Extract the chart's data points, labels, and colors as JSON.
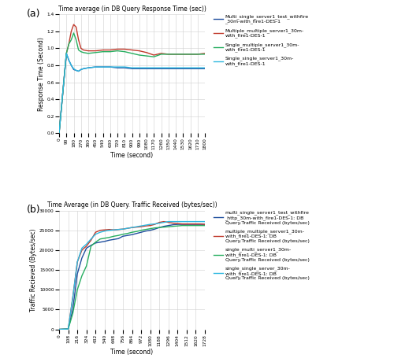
{
  "plot_a": {
    "title": "Time average (in DB Query Response Time (sec))",
    "xlabel": "Time (second)",
    "ylabel": "Response Time (Second)",
    "xlim": [
      0,
      1800
    ],
    "ylim": [
      0,
      1.4
    ],
    "xticks": [
      0,
      90,
      180,
      270,
      360,
      450,
      540,
      630,
      720,
      810,
      900,
      990,
      1080,
      1170,
      1260,
      1350,
      1440,
      1530,
      1620,
      1710,
      1800
    ],
    "yticks": [
      0,
      0.2,
      0.4,
      0.6,
      0.8,
      1.0,
      1.2,
      1.4
    ],
    "lines": [
      {
        "label": "Multi_single_server1_test_withfire\n_30m-with_fire1-DES-1",
        "color": "#1f4e9e",
        "x": [
          0,
          90,
          120,
          150,
          180,
          210,
          240,
          270,
          300,
          360,
          450,
          540,
          630,
          720,
          810,
          900,
          990,
          1080,
          1170,
          1260,
          1350,
          1440,
          1530,
          1620,
          1710,
          1800
        ],
        "y": [
          0,
          0.94,
          0.86,
          0.8,
          0.75,
          0.74,
          0.73,
          0.75,
          0.76,
          0.77,
          0.78,
          0.78,
          0.78,
          0.77,
          0.77,
          0.76,
          0.76,
          0.76,
          0.76,
          0.76,
          0.76,
          0.76,
          0.76,
          0.76,
          0.76,
          0.76
        ]
      },
      {
        "label": "Multiple_multiple_server1_30m-\nwith_fire1-DES-1",
        "color": "#c0392b",
        "x": [
          0,
          90,
          120,
          150,
          180,
          210,
          240,
          270,
          300,
          360,
          450,
          540,
          630,
          720,
          810,
          900,
          990,
          1080,
          1170,
          1260,
          1350,
          1440,
          1530,
          1620,
          1710,
          1800
        ],
        "y": [
          0,
          0.94,
          1.05,
          1.2,
          1.28,
          1.25,
          1.1,
          1.0,
          0.98,
          0.97,
          0.97,
          0.98,
          0.98,
          0.99,
          0.99,
          0.98,
          0.97,
          0.95,
          0.92,
          0.94,
          0.93,
          0.93,
          0.93,
          0.93,
          0.93,
          0.94
        ]
      },
      {
        "label": "Single_multiple_server1_30m-\nwith_fire1-DES-1",
        "color": "#27ae60",
        "x": [
          0,
          90,
          120,
          150,
          180,
          210,
          240,
          270,
          300,
          360,
          450,
          540,
          630,
          720,
          810,
          900,
          990,
          1080,
          1170,
          1260,
          1350,
          1440,
          1530,
          1620,
          1710,
          1800
        ],
        "y": [
          0,
          0.94,
          1.05,
          1.1,
          1.18,
          1.1,
          0.98,
          0.96,
          0.95,
          0.94,
          0.95,
          0.96,
          0.96,
          0.97,
          0.96,
          0.94,
          0.92,
          0.91,
          0.9,
          0.93,
          0.93,
          0.93,
          0.93,
          0.93,
          0.93,
          0.93
        ]
      },
      {
        "label": "Single_single_server1_30m-\nwith_fire1-DES-1",
        "color": "#2eb8e0",
        "x": [
          0,
          90,
          120,
          150,
          180,
          210,
          240,
          270,
          300,
          360,
          450,
          540,
          630,
          720,
          810,
          900,
          990,
          1080,
          1170,
          1260,
          1350,
          1440,
          1530,
          1620,
          1710,
          1800
        ],
        "y": [
          0,
          0.94,
          0.86,
          0.8,
          0.76,
          0.74,
          0.73,
          0.75,
          0.76,
          0.77,
          0.78,
          0.78,
          0.78,
          0.78,
          0.78,
          0.77,
          0.77,
          0.77,
          0.77,
          0.77,
          0.77,
          0.77,
          0.77,
          0.77,
          0.77,
          0.77
        ]
      }
    ]
  },
  "plot_b": {
    "title": "Time Average (in DB Query. Traffic Received (bytes/sec))",
    "xlabel": "Time (second)",
    "ylabel": "Traffic Recieved (Bytes/sec)",
    "xlim": [
      0,
      1728
    ],
    "ylim": [
      0,
      30000
    ],
    "xticks": [
      0,
      108,
      216,
      324,
      432,
      540,
      648,
      756,
      864,
      972,
      1080,
      1188,
      1296,
      1404,
      1512,
      1620,
      1728
    ],
    "yticks": [
      0,
      5000,
      10000,
      15000,
      20000,
      25000,
      30000
    ],
    "lines": [
      {
        "label": "multi_single_server1_test_withfire\n_http_30m-with_fire1-DES-1: DB\nQuery.Traffic Received (bytes/sec)",
        "color": "#1f4e9e",
        "x": [
          0,
          108,
          162,
          216,
          270,
          324,
          378,
          432,
          486,
          540,
          594,
          648,
          702,
          756,
          810,
          864,
          918,
          972,
          1026,
          1080,
          1134,
          1188,
          1242,
          1296,
          1350,
          1404,
          1458,
          1512,
          1566,
          1620,
          1674,
          1728
        ],
        "y": [
          0,
          100,
          5000,
          14000,
          18000,
          20500,
          21200,
          21800,
          22000,
          22200,
          22500,
          22700,
          22900,
          23500,
          23700,
          23900,
          24200,
          24500,
          24800,
          25000,
          25300,
          25700,
          26000,
          26200,
          26400,
          26500,
          26500,
          26500,
          26500,
          26500,
          26500,
          26500
        ]
      },
      {
        "label": "multiple_multiple_server1_30m-\nwith_fire1-DES-1: DB\nQuery.Traffic Received (bytes/sec)",
        "color": "#c0392b",
        "x": [
          0,
          108,
          162,
          216,
          270,
          324,
          378,
          432,
          486,
          540,
          594,
          648,
          702,
          756,
          810,
          864,
          918,
          972,
          1026,
          1080,
          1134,
          1188,
          1242,
          1296,
          1350,
          1404,
          1458,
          1512,
          1566,
          1620,
          1674,
          1728
        ],
        "y": [
          0,
          100,
          8000,
          17000,
          20000,
          21000,
          22500,
          24500,
          25000,
          25100,
          25200,
          25100,
          25200,
          25300,
          25500,
          25700,
          25800,
          25900,
          26100,
          26200,
          26500,
          27000,
          27200,
          27000,
          26800,
          26700,
          26600,
          26600,
          26600,
          26600,
          26600,
          26500
        ]
      },
      {
        "label": "single_multi_server1_30m-\nwith_fire1-DES-1: DB\nQuery.Traffic Received (bytes/sec)",
        "color": "#27ae60",
        "x": [
          0,
          108,
          162,
          216,
          270,
          324,
          378,
          432,
          486,
          540,
          594,
          648,
          702,
          756,
          810,
          864,
          918,
          972,
          1026,
          1080,
          1134,
          1188,
          1242,
          1296,
          1350,
          1404,
          1458,
          1512,
          1566,
          1620,
          1674,
          1728
        ],
        "y": [
          0,
          100,
          4000,
          10000,
          13500,
          16000,
          21000,
          22000,
          22800,
          23000,
          23200,
          23500,
          23700,
          24000,
          24200,
          24500,
          24700,
          25000,
          25200,
          25400,
          25600,
          25700,
          25800,
          25900,
          26000,
          26100,
          26200,
          26200,
          26200,
          26200,
          26200,
          26200
        ]
      },
      {
        "label": "single_single_server_30m-\nwith_fire1-DES-1: DB\nQuery.Traffic Received (bytes/sec)",
        "color": "#2eb8e0",
        "x": [
          0,
          108,
          162,
          216,
          270,
          324,
          378,
          432,
          486,
          540,
          594,
          648,
          702,
          756,
          810,
          864,
          918,
          972,
          1026,
          1080,
          1134,
          1188,
          1242,
          1296,
          1350,
          1404,
          1458,
          1512,
          1566,
          1620,
          1674,
          1728
        ],
        "y": [
          0,
          100,
          8000,
          17000,
          20500,
          21500,
          22800,
          24000,
          24500,
          24800,
          25000,
          25100,
          25200,
          25300,
          25500,
          25700,
          25900,
          26100,
          26300,
          26500,
          26600,
          26800,
          27000,
          27200,
          27200,
          27200,
          27200,
          27200,
          27200,
          27200,
          27200,
          27200
        ]
      }
    ]
  }
}
